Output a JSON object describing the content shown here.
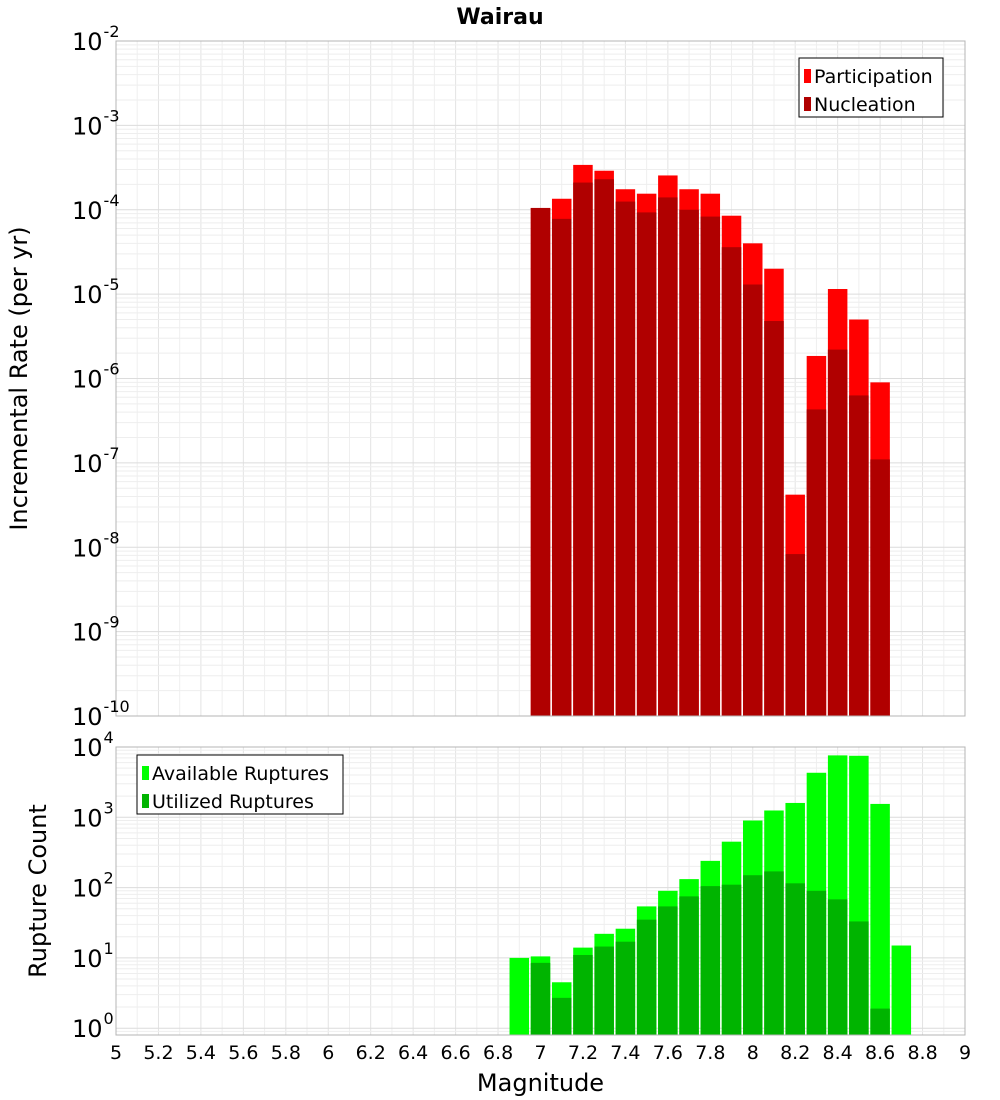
{
  "chart_data": [
    {
      "type": "bar",
      "title": "Wairau",
      "xlabel": "",
      "ylabel": "Incremental Rate (per yr)",
      "yscale": "log",
      "xlim": [
        5,
        9
      ],
      "ylim": [
        1e-10,
        0.01
      ],
      "x_tick_values": [
        5,
        5.2,
        5.4,
        5.6,
        5.8,
        6,
        6.2,
        6.4,
        6.6,
        6.8,
        7,
        7.2,
        7.4,
        7.6,
        7.8,
        8,
        8.2,
        8.4,
        8.6,
        8.8,
        9
      ],
      "y_tick_exponents": [
        "-2",
        "-3",
        "-4",
        "-5",
        "-6",
        "-7",
        "-8",
        "-9",
        "-10"
      ],
      "y_tick_base": "10",
      "grid": true,
      "legend_position": "top-right",
      "x": [
        7.0,
        7.1,
        7.2,
        7.3,
        7.4,
        7.5,
        7.6,
        7.7,
        7.8,
        7.9,
        8.0,
        8.1,
        8.2,
        8.3,
        8.4,
        8.5,
        8.6,
        8.7
      ],
      "series": [
        {
          "name": "Participation",
          "color": "#ff0000",
          "values": [
            0.000105,
            0.000135,
            0.00034,
            0.00029,
            0.000175,
            0.000155,
            0.000255,
            0.000175,
            0.000155,
            8.5e-05,
            4e-05,
            2e-05,
            4.2e-08,
            1.85e-06,
            1.15e-05,
            5e-06,
            9e-07,
            null
          ]
        },
        {
          "name": "Nucleation",
          "color": "#b00000",
          "values": [
            0.000105,
            7.8e-05,
            0.00021,
            0.00023,
            0.000125,
            9.3e-05,
            0.00014,
            0.0001,
            8.3e-05,
            3.6e-05,
            1.3e-05,
            4.8e-06,
            8.3e-09,
            4.3e-07,
            2.2e-06,
            6.3e-07,
            1.1e-07,
            null
          ]
        }
      ]
    },
    {
      "type": "bar",
      "title": "",
      "xlabel": "Magnitude",
      "ylabel": "Rupture Count",
      "yscale": "log",
      "xlim": [
        5,
        9
      ],
      "ylim": [
        0.8,
        10000
      ],
      "x_tick_values": [
        5,
        5.2,
        5.4,
        5.6,
        5.8,
        6,
        6.2,
        6.4,
        6.6,
        6.8,
        7,
        7.2,
        7.4,
        7.6,
        7.8,
        8,
        8.2,
        8.4,
        8.6,
        8.8,
        9
      ],
      "x_tick_labels": [
        "5",
        "5.2",
        "5.4",
        "5.6",
        "5.8",
        "6",
        "6.2",
        "6.4",
        "6.6",
        "6.8",
        "7",
        "7.2",
        "7.4",
        "7.6",
        "7.8",
        "8",
        "8.2",
        "8.4",
        "8.6",
        "8.8",
        "9"
      ],
      "y_tick_exponents": [
        "4",
        "3",
        "2",
        "1",
        "0"
      ],
      "y_tick_base": "10",
      "grid": true,
      "legend_position": "top-left",
      "x": [
        6.9,
        7.0,
        7.1,
        7.2,
        7.3,
        7.4,
        7.5,
        7.6,
        7.7,
        7.8,
        7.9,
        8.0,
        8.1,
        8.2,
        8.3,
        8.4,
        8.5,
        8.6,
        8.7
      ],
      "series": [
        {
          "name": "Available Ruptures",
          "color": "#00ff00",
          "values": [
            10,
            10.5,
            4.5,
            14,
            22,
            26,
            54,
            90,
            132,
            240,
            450,
            900,
            1250,
            1600,
            4300,
            7600,
            7500,
            1550,
            15
          ]
        },
        {
          "name": "Utilized Ruptures",
          "color": "#00b400",
          "values": [
            null,
            8.5,
            2.7,
            11,
            14.5,
            17,
            35,
            54,
            75,
            105,
            110,
            150,
            170,
            115,
            90,
            68,
            33,
            1.9,
            null
          ]
        }
      ]
    }
  ]
}
